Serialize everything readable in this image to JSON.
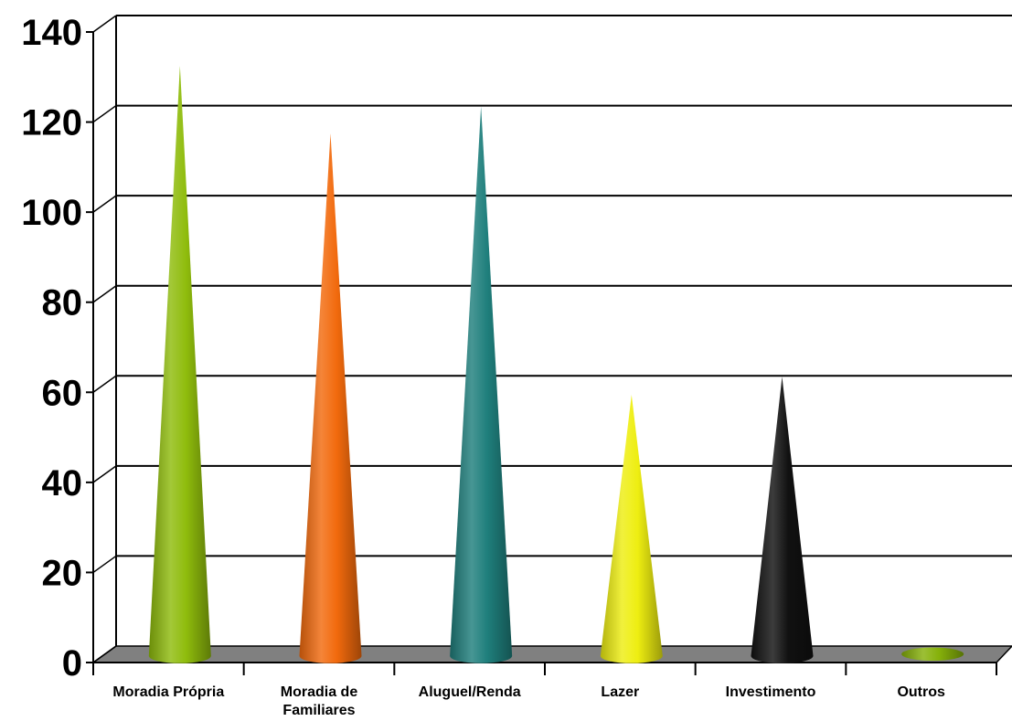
{
  "chart_data": {
    "type": "bar",
    "bar_shape": "cone",
    "categories": [
      [
        "Moradia Própria"
      ],
      [
        "Moradia de",
        "Familiares"
      ],
      [
        "Aluguel/Renda"
      ],
      [
        "Lazer"
      ],
      [
        "Investimento"
      ],
      [
        "Outros"
      ]
    ],
    "values": [
      131,
      116,
      122,
      58,
      62,
      1
    ],
    "colors": [
      "#8fbc0c",
      "#f26a0d",
      "#1f7f7c",
      "#eeee11",
      "#111111",
      "#86b10a"
    ],
    "yticks": [
      "0",
      "20",
      "40",
      "60",
      "80",
      "100",
      "120",
      "140"
    ],
    "ylim": [
      0,
      140
    ],
    "grid": true,
    "floor_color": "#808080"
  }
}
